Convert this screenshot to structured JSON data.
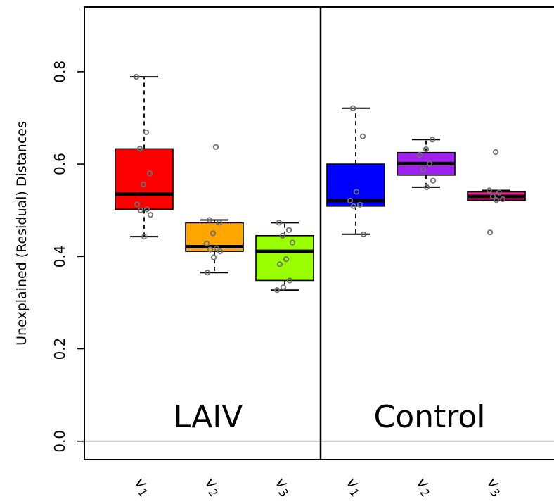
{
  "chart_data": {
    "type": "box",
    "title": "",
    "xlabel": "",
    "ylabel": "Unexplained (Residual) Distances",
    "ylim": [
      -0.04,
      0.94
    ],
    "yticks": [
      0.0,
      0.2,
      0.4,
      0.6,
      0.8
    ],
    "ytick_labels": [
      "0.0",
      "0.2",
      "0.4",
      "0.6",
      "0.8"
    ],
    "reference_line": 0.0,
    "grid": false,
    "legend": "none",
    "panels": [
      {
        "label": "LAIV",
        "boxes": [
          {
            "category": "v",
            "sub": "1",
            "color": "#ff0000",
            "whisker_low": 0.443,
            "q1": 0.502,
            "median": 0.535,
            "q3": 0.633,
            "whisker_high": 0.789,
            "points": [
              0.789,
              0.669,
              0.633,
              0.58,
              0.556,
              0.513,
              0.502,
              0.5,
              0.49,
              0.443
            ]
          },
          {
            "category": "v",
            "sub": "2",
            "color": "#ffa500",
            "whisker_low": 0.365,
            "q1": 0.411,
            "median": 0.421,
            "q3": 0.473,
            "whisker_high": 0.479,
            "points": [
              0.637,
              0.479,
              0.473,
              0.45,
              0.428,
              0.418,
              0.415,
              0.411,
              0.398,
              0.365
            ]
          },
          {
            "category": "v",
            "sub": "3",
            "color": "#99ff00",
            "whisker_low": 0.327,
            "q1": 0.348,
            "median": 0.411,
            "q3": 0.445,
            "whisker_high": 0.473,
            "points": [
              0.473,
              0.457,
              0.445,
              0.43,
              0.394,
              0.383,
              0.348,
              0.333,
              0.327
            ]
          }
        ]
      },
      {
        "label": "Control",
        "boxes": [
          {
            "category": "v",
            "sub": "1",
            "color": "#0000ff",
            "whisker_low": 0.448,
            "q1": 0.509,
            "median": 0.521,
            "q3": 0.6,
            "whisker_high": 0.721,
            "points": [
              0.721,
              0.66,
              0.54,
              0.521,
              0.512,
              0.509,
              0.448
            ]
          },
          {
            "category": "v",
            "sub": "2",
            "color": "#a020f0",
            "whisker_low": 0.55,
            "q1": 0.576,
            "median": 0.601,
            "q3": 0.625,
            "whisker_high": 0.653,
            "points": [
              0.653,
              0.632,
              0.62,
              0.601,
              0.588,
              0.564,
              0.55
            ]
          },
          {
            "category": "v",
            "sub": "3",
            "color": "#ff1493",
            "whisker_low": 0.522,
            "q1": 0.522,
            "median": 0.53,
            "q3": 0.54,
            "whisker_high": 0.543,
            "points": [
              0.626,
              0.543,
              0.538,
              0.53,
              0.524,
              0.522,
              0.452
            ]
          }
        ]
      }
    ]
  }
}
